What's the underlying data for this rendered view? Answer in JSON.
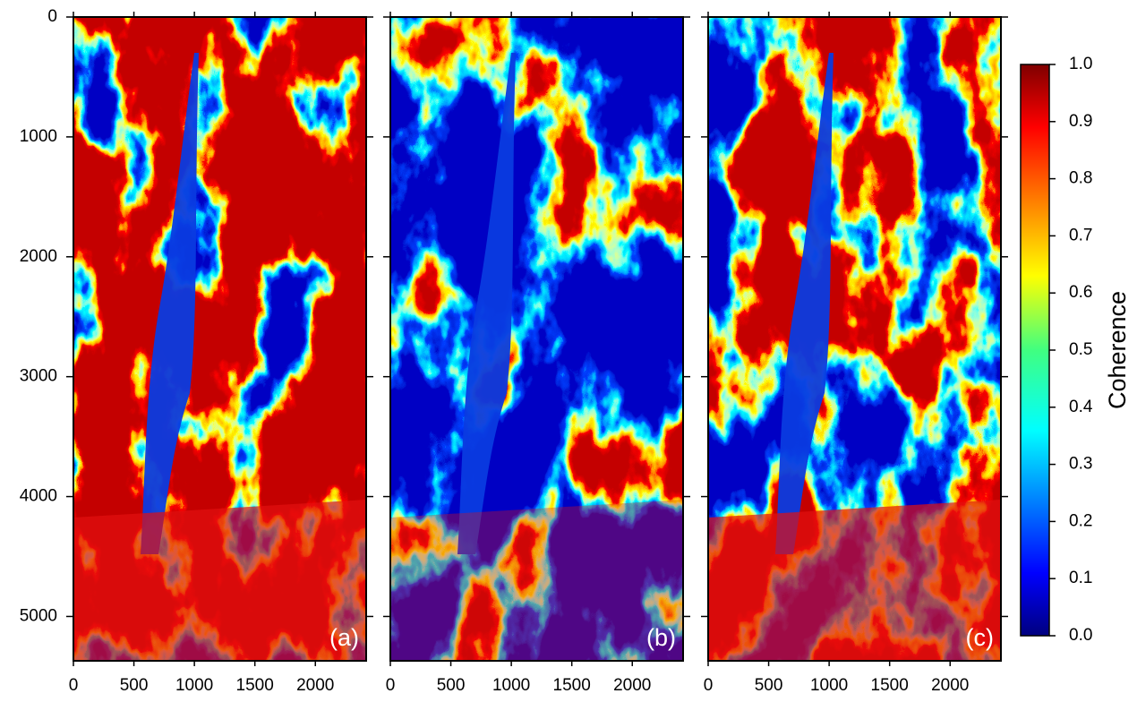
{
  "chart_data": [
    {
      "type": "image",
      "panel_label": "(a)",
      "xlim": [
        0,
        2420
      ],
      "ylim": [
        0,
        5370
      ],
      "y_inverted": true,
      "xticks": [
        0,
        500,
        1000,
        1500,
        2000
      ],
      "yticks": [
        0,
        1000,
        2000,
        3000,
        4000,
        5000
      ],
      "show_ytick_labels": true,
      "colormap": "jet"
    },
    {
      "type": "image",
      "panel_label": "(b)",
      "xlim": [
        0,
        2420
      ],
      "ylim": [
        0,
        5370
      ],
      "y_inverted": true,
      "xticks": [
        0,
        500,
        1000,
        1500,
        2000
      ],
      "yticks": [
        0,
        1000,
        2000,
        3000,
        4000,
        5000
      ],
      "show_ytick_labels": false,
      "colormap": "jet"
    },
    {
      "type": "image",
      "panel_label": "(c)",
      "xlim": [
        0,
        2420
      ],
      "ylim": [
        0,
        5370
      ],
      "y_inverted": true,
      "xticks": [
        0,
        500,
        1000,
        1500,
        2000
      ],
      "yticks": [
        0,
        1000,
        2000,
        3000,
        4000,
        5000
      ],
      "show_ytick_labels": false,
      "colormap": "jet"
    },
    {
      "type": "colorbar",
      "label": "Coherence",
      "clim": [
        0,
        1
      ],
      "colormap": "jet",
      "ticks": [
        {
          "value": 0,
          "label": "0.0"
        },
        {
          "value": 0.1,
          "label": "0.1"
        },
        {
          "value": 0.2,
          "label": "0.2"
        },
        {
          "value": 0.3,
          "label": "0.3"
        },
        {
          "value": 0.4,
          "label": "0.4"
        },
        {
          "value": 0.5,
          "label": "0.5"
        },
        {
          "value": 0.6,
          "label": "0.6"
        },
        {
          "value": 0.7,
          "label": "0.7"
        },
        {
          "value": 0.8,
          "label": "0.8"
        },
        {
          "value": 0.9,
          "label": "0.9"
        },
        {
          "value": 1,
          "label": "1.0"
        }
      ]
    }
  ]
}
